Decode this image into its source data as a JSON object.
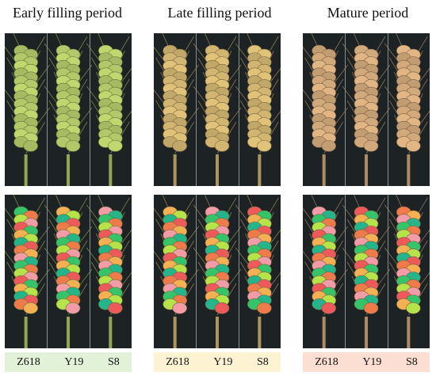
{
  "periods": [
    {
      "title": "Early filling period",
      "varieties": [
        "Z618",
        "Y19",
        "S8"
      ],
      "label_bg": "#e2f2d9"
    },
    {
      "title": "Late filling period",
      "varieties": [
        "Z618",
        "Y19",
        "S8"
      ],
      "label_bg": "#fdf3d3"
    },
    {
      "title": "Mature period",
      "varieties": [
        "Z618",
        "Y19",
        "S8"
      ],
      "label_bg": "#fcded2"
    }
  ],
  "colors": {
    "early_spike": "#b9cf6c",
    "late_spike": "#d8bb74",
    "mature_spike": "#d9ae7f",
    "background": "#1d2224",
    "segmentation_palette": [
      "#35c46a",
      "#f07b4a",
      "#f4b052",
      "#b6e34a",
      "#f39ba6",
      "#24b58a",
      "#ee5a5a"
    ]
  }
}
